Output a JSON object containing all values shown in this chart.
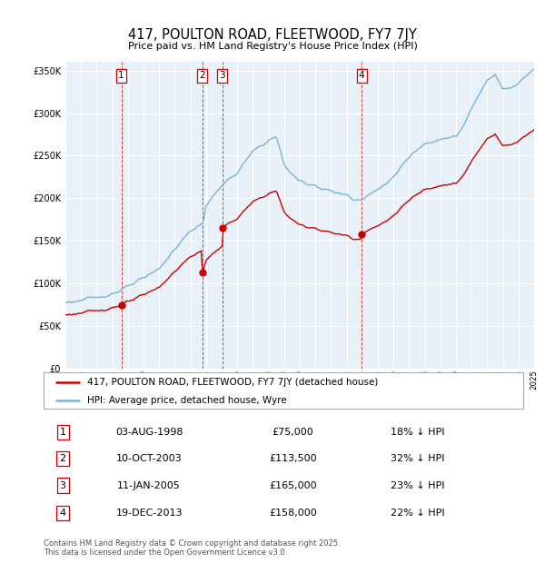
{
  "title": "417, POULTON ROAD, FLEETWOOD, FY7 7JY",
  "subtitle": "Price paid vs. HM Land Registry's House Price Index (HPI)",
  "hpi_color": "#7ab3d4",
  "price_color": "#cc0000",
  "background_color": "#e8f0f8",
  "ylim": [
    0,
    360000
  ],
  "yticks": [
    0,
    50000,
    100000,
    150000,
    200000,
    250000,
    300000,
    350000
  ],
  "xlim_left": 1995,
  "xlim_right": 2025,
  "legend_label_price": "417, POULTON ROAD, FLEETWOOD, FY7 7JY (detached house)",
  "legend_label_hpi": "HPI: Average price, detached house, Wyre",
  "sales": [
    {
      "num": 1,
      "date_str": "03-AUG-1998",
      "year": 1998.58,
      "price": 75000,
      "pct": "18%"
    },
    {
      "num": 2,
      "date_str": "10-OCT-2003",
      "year": 2003.77,
      "price": 113500,
      "pct": "32%"
    },
    {
      "num": 3,
      "date_str": "11-JAN-2005",
      "year": 2005.03,
      "price": 165000,
      "pct": "23%"
    },
    {
      "num": 4,
      "date_str": "19-DEC-2013",
      "year": 2013.96,
      "price": 158000,
      "pct": "22%"
    }
  ],
  "hpi_key_years": [
    1995,
    1996,
    1997,
    1998,
    1999,
    2000,
    2001,
    2002,
    2003,
    2003.8,
    2004,
    2005,
    2006,
    2007,
    2008.0,
    2008.5,
    2009,
    2009.5,
    2010,
    2011,
    2012,
    2013,
    2013.5,
    2014,
    2015,
    2016,
    2017,
    2018,
    2019,
    2020,
    2020.5,
    2021,
    2022,
    2022.5,
    2023,
    2023.5,
    2024,
    2024.5,
    2025
  ],
  "hpi_key_vals": [
    78000,
    80000,
    84000,
    88000,
    96000,
    106000,
    118000,
    140000,
    162000,
    170000,
    192000,
    215000,
    230000,
    255000,
    268000,
    272000,
    240000,
    228000,
    220000,
    215000,
    208000,
    204000,
    198000,
    200000,
    210000,
    225000,
    248000,
    265000,
    270000,
    272000,
    285000,
    305000,
    340000,
    345000,
    328000,
    330000,
    335000,
    345000,
    352000
  ],
  "footer": "Contains HM Land Registry data © Crown copyright and database right 2025.\nThis data is licensed under the Open Government Licence v3.0."
}
